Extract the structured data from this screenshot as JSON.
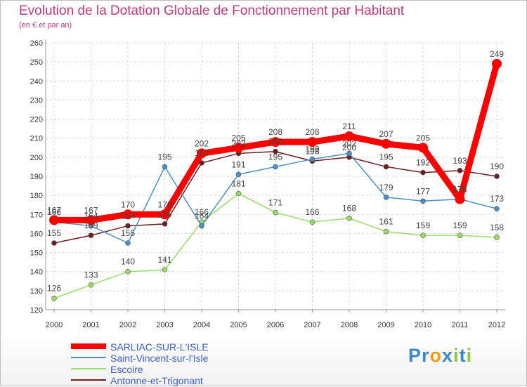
{
  "chart_data": {
    "type": "line",
    "title": "Evolution de la Dotation Globale de Fonctionnement par Habitant",
    "subtitle": "(en € et par an)",
    "xlabel": "",
    "ylabel": "",
    "x": [
      "2000",
      "2001",
      "2002",
      "2003",
      "2004",
      "2005",
      "2006",
      "2007",
      "2008",
      "2009",
      "2010",
      "2011",
      "2012"
    ],
    "ylim": [
      120,
      260
    ],
    "yticks": [
      120,
      130,
      140,
      150,
      160,
      170,
      180,
      190,
      200,
      210,
      220,
      230,
      240,
      250,
      260
    ],
    "grid": true,
    "legend_position": "bottom-left",
    "series": [
      {
        "name": "SARLIAC-SUR-L'ISLE",
        "color": "#ff0000",
        "values": [
          167,
          167,
          170,
          170,
          202,
          205,
          208,
          208,
          211,
          207,
          205,
          178,
          249
        ]
      },
      {
        "name": "Saint-Vincent-sur-l'Isle",
        "color": "#4a90c8",
        "values": [
          166,
          164,
          155,
          195,
          164,
          191,
          195,
          199,
          202,
          179,
          177,
          178,
          173
        ]
      },
      {
        "name": "Escoire",
        "color": "#99dd66",
        "values": [
          126,
          133,
          140,
          141,
          166,
          181,
          171,
          166,
          168,
          161,
          159,
          159,
          158
        ]
      },
      {
        "name": "Antonne-et-Trigonant",
        "color": "#6b1f1f",
        "values": [
          155,
          159,
          164,
          165,
          197,
          202,
          203,
          198,
          200,
          195,
          192,
          193,
          190
        ]
      }
    ]
  },
  "logo": {
    "text": "Proxiti",
    "letters": [
      "P",
      "r",
      "o",
      "x",
      "i",
      "t",
      "i"
    ],
    "colors": [
      "#3b87c8",
      "#3b87c8",
      "#f39c12",
      "#3b87c8",
      "#8ec63f",
      "#3b87c8",
      "#8ec63f"
    ]
  }
}
